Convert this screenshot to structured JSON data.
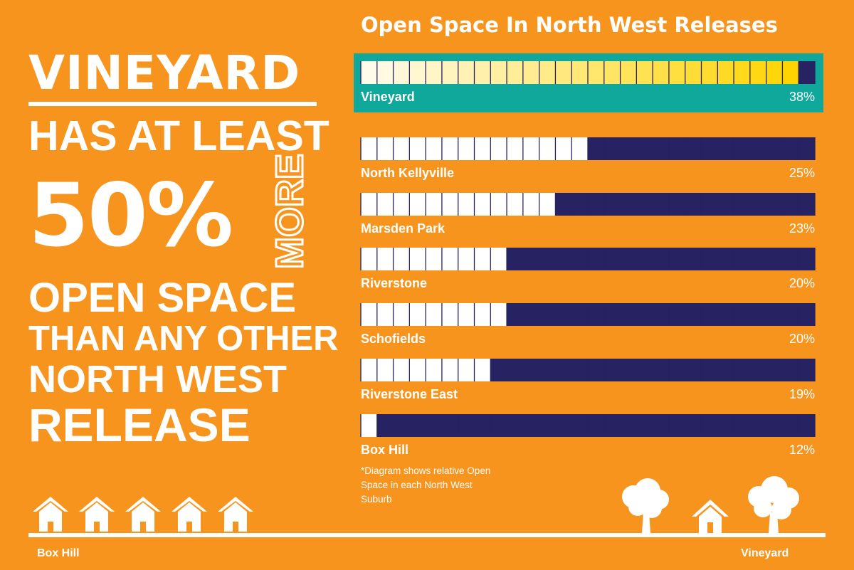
{
  "headline": {
    "line1": "VINEYARD",
    "line2": "HAS AT LEAST",
    "line3": "50%",
    "more": "MORE",
    "line4": "OPEN SPACE",
    "line5": "THAN ANY OTHER",
    "line6": "NORTH WEST",
    "line7": "RELEASE"
  },
  "chart_data": {
    "type": "bar",
    "title": "Open Space In North West Releases",
    "categories": [
      "Vineyard",
      "North Kellyville",
      "Marsden Park",
      "Riverstone",
      "Schofields",
      "Riverstone East",
      "Box Hill"
    ],
    "values": [
      38,
      25,
      23,
      20,
      20,
      19,
      12
    ],
    "value_labels": [
      "38%",
      "25%",
      "23%",
      "20%",
      "20%",
      "19%",
      "12%"
    ],
    "segments_per_bar": 28,
    "filled_segments": [
      27,
      14,
      12,
      9,
      9,
      8,
      1
    ],
    "highlight": "Vineyard",
    "colors": {
      "background": "#F7941E",
      "highlight_box": "#0FA89B",
      "empty_segment": "#272262",
      "filled_segment": "#FFFFFF",
      "gradient_start": "#FFFBEA",
      "gradient_end": "#FFD400"
    }
  },
  "footnote": "*Diagram shows relative Open Space in each North West Suburb",
  "bottom": {
    "left_label": "Box Hill",
    "right_label": "Vineyard",
    "left_icon": "houses-row-icon",
    "right_icon": "house-and-trees-icon"
  }
}
